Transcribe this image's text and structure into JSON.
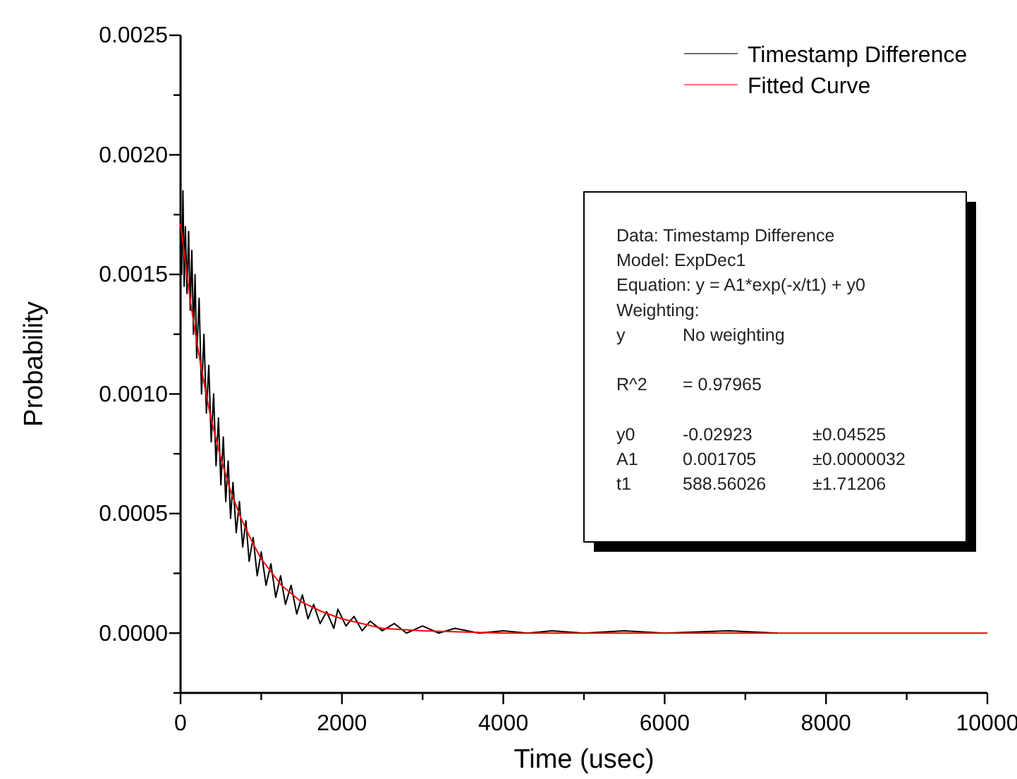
{
  "chart_data": {
    "type": "line",
    "xlabel": "Time (usec)",
    "ylabel": "Probability",
    "xlim": [
      0,
      10000
    ],
    "ylim": [
      -0.00025,
      0.0025
    ],
    "xticks": [
      0,
      {
        "value": 1000,
        "label": null
      },
      2000,
      {
        "value": 3000,
        "label": null
      },
      4000,
      {
        "value": 5000,
        "label": null
      },
      6000,
      {
        "value": 7000,
        "label": null
      },
      8000,
      {
        "value": 9000,
        "label": null
      },
      10000
    ],
    "yticks": [
      {
        "value": -0.00025,
        "label": null
      },
      {
        "value": 0,
        "label": "0.0000"
      },
      {
        "value": 0.00025,
        "label": null
      },
      {
        "value": 0.0005,
        "label": "0.0005"
      },
      {
        "value": 0.00075,
        "label": null
      },
      {
        "value": 0.001,
        "label": "0.0010"
      },
      {
        "value": 0.00125,
        "label": null
      },
      {
        "value": 0.0015,
        "label": "0.0015"
      },
      {
        "value": 0.00175,
        "label": null
      },
      {
        "value": 0.002,
        "label": "0.0020"
      },
      {
        "value": 0.00225,
        "label": null
      },
      {
        "value": 0.0025,
        "label": "0.0025"
      }
    ],
    "grid": false,
    "legend": "top right",
    "marker": "none",
    "line_style": "solid",
    "series": [
      {
        "name": "Timestamp Difference",
        "color": "#000000",
        "x": [
          0,
          15,
          30,
          45,
          60,
          80,
          100,
          120,
          140,
          160,
          180,
          200,
          230,
          260,
          290,
          320,
          350,
          380,
          410,
          440,
          470,
          500,
          530,
          560,
          590,
          620,
          650,
          690,
          730,
          770,
          810,
          850,
          900,
          950,
          1000,
          1060,
          1120,
          1180,
          1240,
          1300,
          1370,
          1440,
          1510,
          1580,
          1650,
          1730,
          1810,
          1900,
          1950,
          2050,
          2150,
          2250,
          2350,
          2500,
          2650,
          2800,
          3000,
          3200,
          3400,
          3700,
          4000,
          4300,
          4600,
          5000,
          5500,
          6000,
          6800,
          7400
        ],
        "values": [
          0.00175,
          0.0015,
          0.00185,
          0.00145,
          0.0017,
          0.00142,
          0.00168,
          0.00135,
          0.0016,
          0.00125,
          0.0015,
          0.00115,
          0.0014,
          0.001,
          0.00125,
          0.00092,
          0.00112,
          0.0008,
          0.001,
          0.0007,
          0.0009,
          0.00062,
          0.00082,
          0.00055,
          0.00072,
          0.00048,
          0.00063,
          0.00042,
          0.00055,
          0.00036,
          0.00047,
          0.0003,
          0.0004,
          0.00024,
          0.00034,
          0.0002,
          0.00029,
          0.00015,
          0.00024,
          0.00012,
          0.0002,
          8e-05,
          0.00016,
          6e-05,
          0.00012,
          4e-05,
          9e-05,
          2e-05,
          0.0001,
          3e-05,
          7e-05,
          1e-05,
          5e-05,
          1e-05,
          4e-05,
          0,
          3e-05,
          0,
          2e-05,
          0,
          1e-05,
          0,
          1e-05,
          0,
          1e-05,
          0,
          1e-05,
          0
        ]
      },
      {
        "name": "Fitted Curve",
        "color": "#ff0000",
        "x": [
          0,
          125,
          250,
          375,
          500,
          625,
          750,
          875,
          1000,
          1250,
          1500,
          1750,
          2000,
          2500,
          3000,
          4000,
          5000,
          7000,
          10000
        ],
        "values": [
          0.00171,
          0.00138,
          0.00112,
          0.0009,
          0.00073,
          0.00059,
          0.00048,
          0.00039,
          0.00031,
          0.0002,
          0.00013,
          9e-05,
          6e-05,
          2e-05,
          1e-05,
          0,
          0,
          0,
          0
        ]
      }
    ],
    "annotations": [
      "Data: Timestamp Difference",
      "Model: ExpDec1",
      "Equation: y = A1*exp(-x/t1) + y0",
      "Weighting:",
      "y\tNo weighting",
      "R^2\t=  0.97965",
      "y0\t-0.02923\t±0.04525",
      "A1\t0.001705\t±0.0000032",
      "t1\t588.56026\t±1.71206"
    ]
  }
}
